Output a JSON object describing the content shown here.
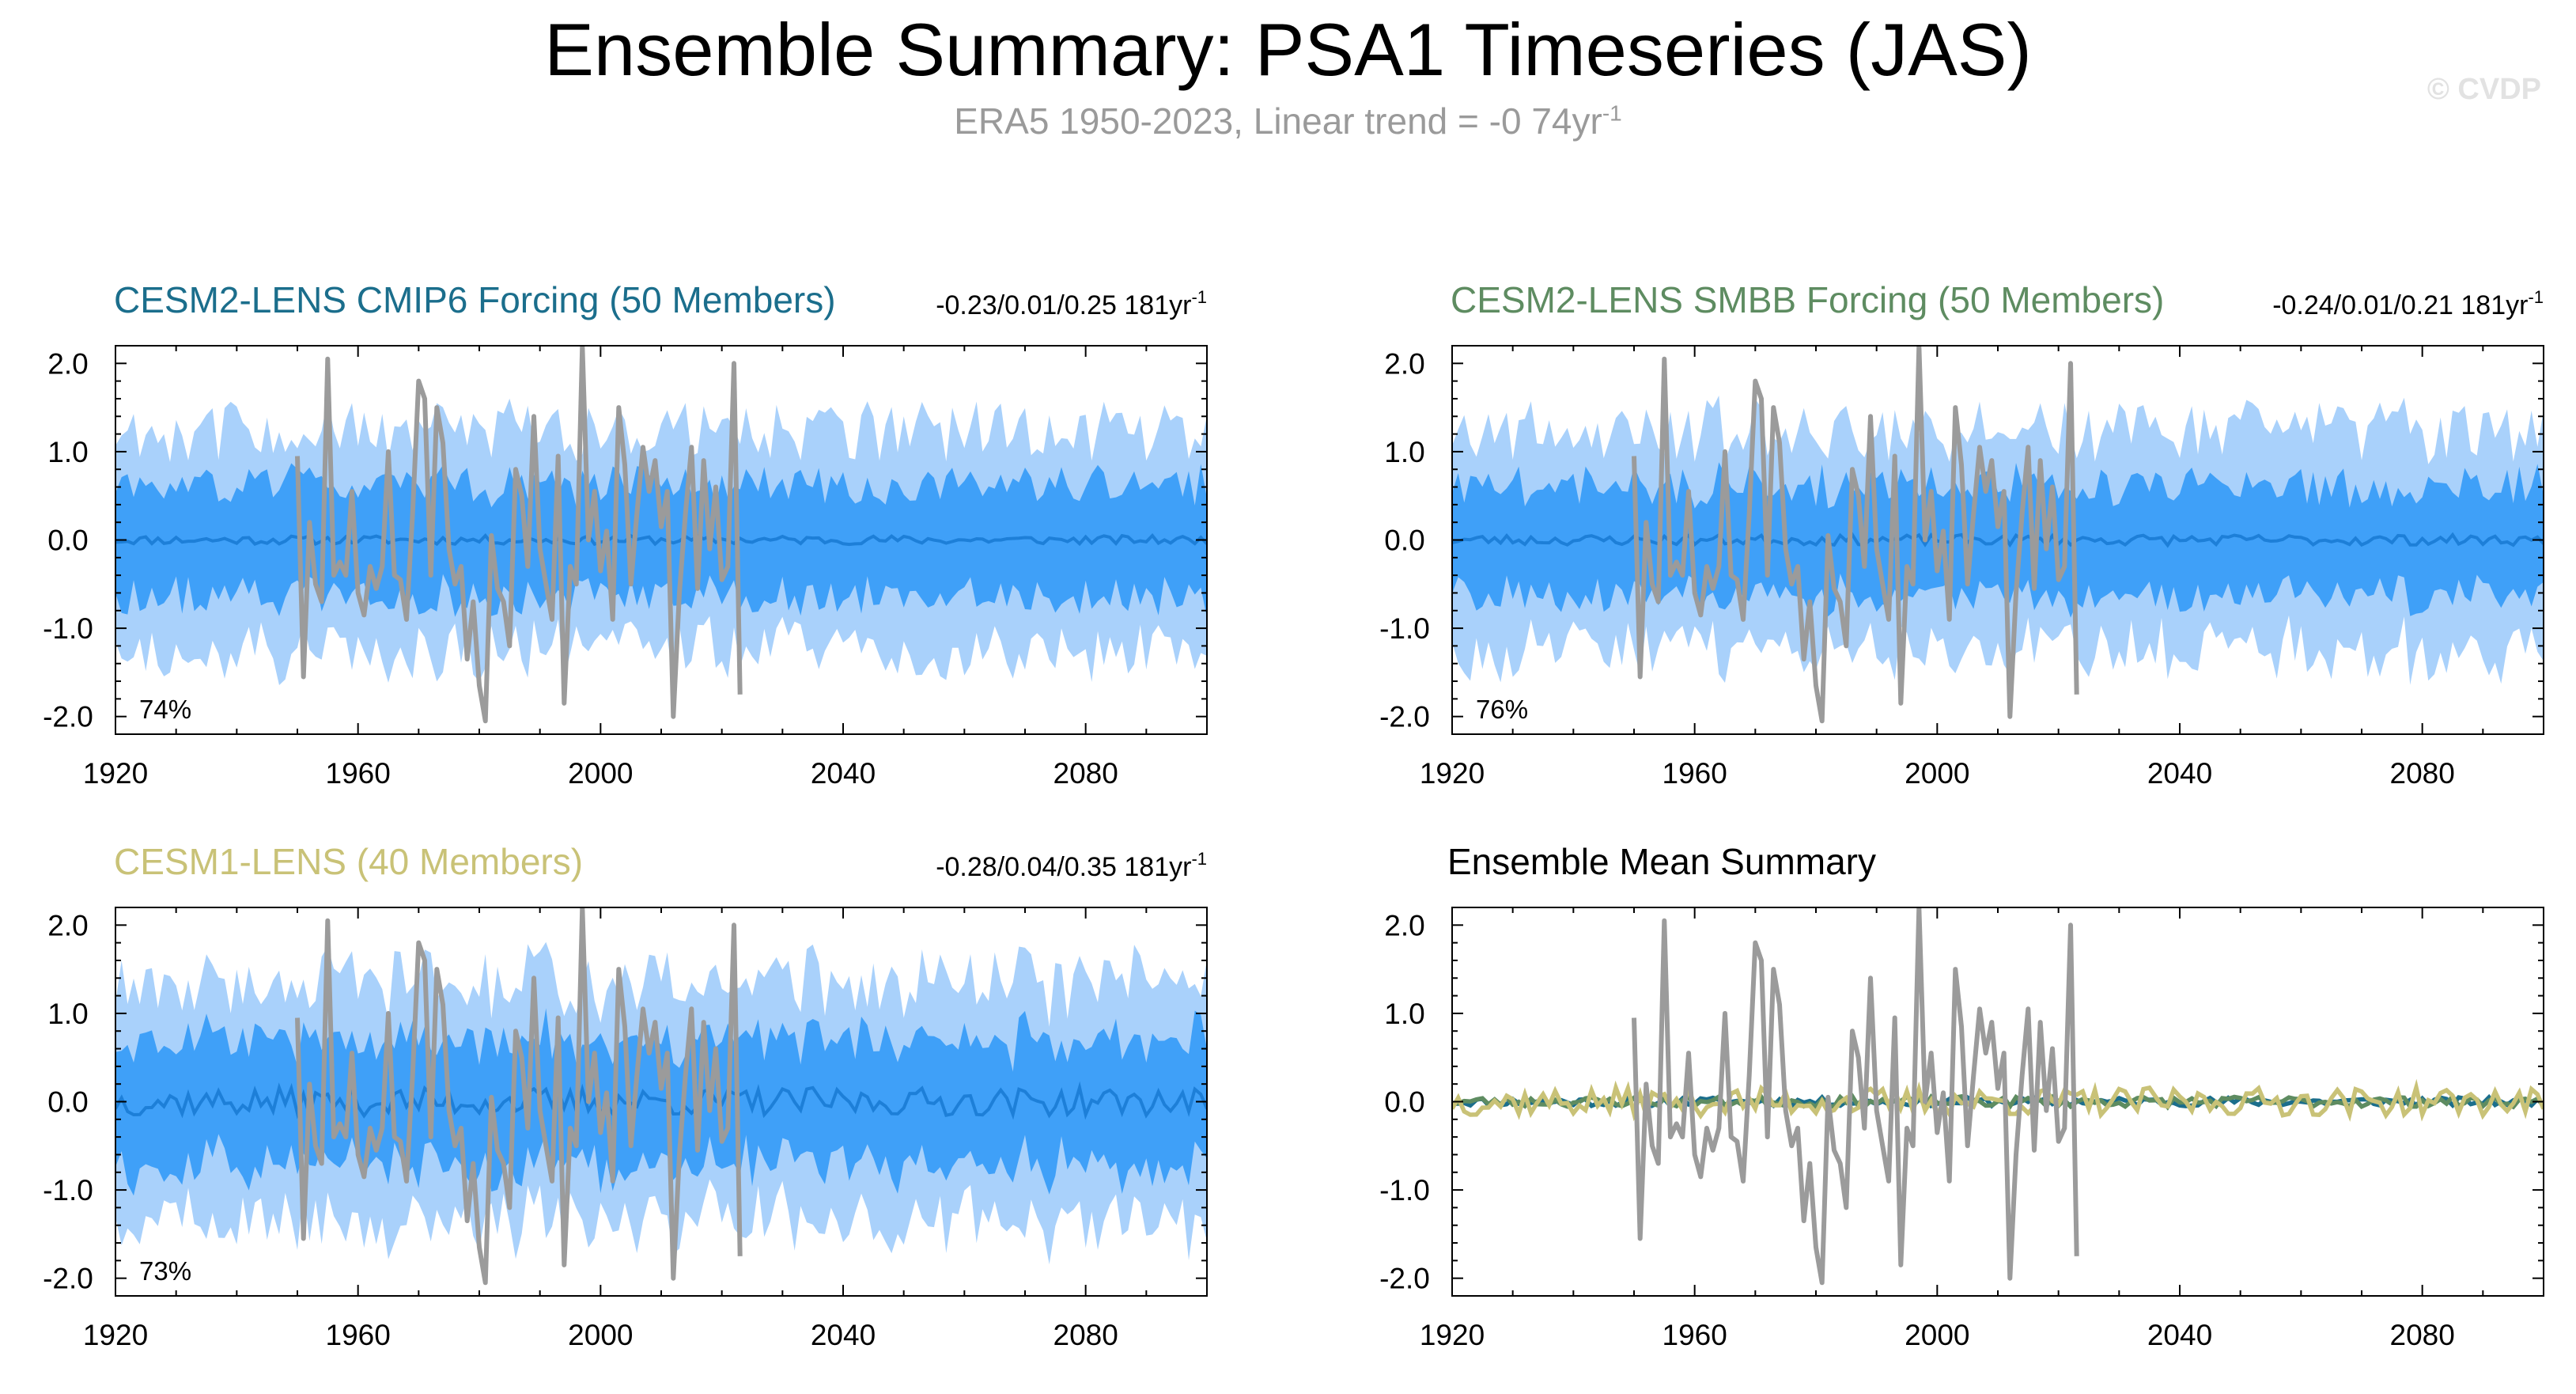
{
  "title": "Ensemble Summary: PSA1 Timeseries (JAS)",
  "subtitle": {
    "text": "ERA5 1950-2023, Linear trend = -0 74yr",
    "superscript": "-1"
  },
  "watermark": "© CVDP",
  "colors": {
    "outer_band": "#a9d1fb",
    "inner_band": "#3fa0f8",
    "ens_mean": "#1d7fd8",
    "observations": "#9b9b9b",
    "cmip6_title": "#1b6e8c",
    "smbb_title": "#5e8c61",
    "cesm1_title": "#c9c277"
  },
  "axes": {
    "x_ticks": [
      "1920",
      "1960",
      "2000",
      "2040",
      "2080"
    ],
    "y_ticks": [
      "2.0",
      "1.0",
      "0.0",
      "-1.0",
      "-2.0"
    ]
  },
  "panels": [
    {
      "id": "cmip6",
      "title": "CESM2-LENS CMIP6 Forcing (50 Members)",
      "stat": "-0.23/0.01/0.25 181yr",
      "stat_sup": "-1",
      "percent": "74%"
    },
    {
      "id": "smbb",
      "title": "CESM2-LENS SMBB Forcing (50 Members)",
      "stat": "-0.24/0.01/0.21 181yr",
      "stat_sup": "-1",
      "percent": "76%"
    },
    {
      "id": "cesm1",
      "title": "CESM1-LENS (40 Members)",
      "stat": "-0.28/0.04/0.35 181yr",
      "stat_sup": "-1",
      "percent": "73%"
    },
    {
      "id": "summary",
      "title": "Ensemble Mean Summary",
      "stat": "",
      "stat_sup": "",
      "percent": ""
    }
  ],
  "chart_data": {
    "type": "line",
    "x_range": [
      1920,
      2100
    ],
    "y_range": [
      -2.2,
      2.2
    ],
    "obs_years": [
      1950,
      2023
    ],
    "obs_values": [
      0.95,
      -1.55,
      0.2,
      -0.5,
      -0.7,
      2.05,
      -0.4,
      -0.25,
      -0.4,
      0.55,
      -0.6,
      -0.85,
      -0.3,
      -0.55,
      -0.3,
      1.0,
      -0.4,
      -0.45,
      -0.9,
      0.3,
      1.8,
      1.6,
      -0.4,
      1.5,
      1.1,
      -0.1,
      -0.5,
      -0.3,
      -1.35,
      -0.7,
      -1.65,
      -2.05,
      0.05,
      -0.55,
      -0.7,
      -1.2,
      0.8,
      0.5,
      -0.3,
      1.4,
      -0.1,
      -0.5,
      -0.9,
      0.95,
      -1.85,
      -0.3,
      -0.5,
      2.2,
      0.0,
      0.55,
      -0.35,
      0.1,
      -0.9,
      1.5,
      0.85,
      -0.5,
      0.3,
      1.05,
      0.55,
      0.9,
      0.15,
      0.55,
      -2.0,
      -0.6,
      0.3,
      1.05,
      -0.55,
      0.9,
      -0.1,
      0.6,
      -0.45,
      -0.3,
      2.0,
      -1.75
    ],
    "model_years": [
      1920,
      2100
    ],
    "series": [
      {
        "name": "CESM2-LENS CMIP6 Forcing (50 Members)",
        "seed": 11,
        "mean_amp": 0.05,
        "inner_amp": 0.62,
        "outer_amp": 1.25
      },
      {
        "name": "CESM2-LENS SMBB Forcing (50 Members)",
        "seed": 23,
        "mean_amp": 0.06,
        "inner_amp": 0.62,
        "outer_amp": 1.25
      },
      {
        "name": "CESM1-LENS (40 Members)",
        "seed": 37,
        "mean_amp": 0.16,
        "inner_amp": 0.7,
        "outer_amp": 1.35
      }
    ]
  }
}
